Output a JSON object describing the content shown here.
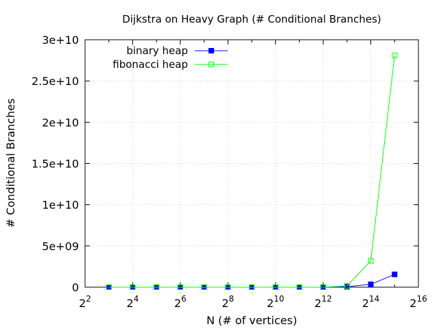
{
  "chart_data": {
    "type": "line",
    "title": "Dijkstra on Heavy Graph (# Conditional Branches)",
    "xlabel": "N (# of vertices)",
    "ylabel": "# Conditional Branches",
    "x_scale": "log2",
    "xlim": [
      4,
      65536
    ],
    "ylim": [
      0,
      30000000000
    ],
    "grid": true,
    "legend_position": "top-left",
    "x_ticks": [
      {
        "value": 4,
        "base": "2",
        "exp": "2"
      },
      {
        "value": 16,
        "base": "2",
        "exp": "4"
      },
      {
        "value": 64,
        "base": "2",
        "exp": "6"
      },
      {
        "value": 256,
        "base": "2",
        "exp": "8"
      },
      {
        "value": 1024,
        "base": "2",
        "exp": "10"
      },
      {
        "value": 4096,
        "base": "2",
        "exp": "12"
      },
      {
        "value": 16384,
        "base": "2",
        "exp": "14"
      },
      {
        "value": 65536,
        "base": "2",
        "exp": "16"
      }
    ],
    "y_ticks": [
      {
        "value": 0,
        "label": "0"
      },
      {
        "value": 5000000000,
        "label": "5e+09"
      },
      {
        "value": 10000000000,
        "label": "1e+10"
      },
      {
        "value": 15000000000,
        "label": "1.5e+10"
      },
      {
        "value": 20000000000,
        "label": "2e+10"
      },
      {
        "value": 25000000000,
        "label": "2.5e+10"
      },
      {
        "value": 30000000000,
        "label": "3e+10"
      }
    ],
    "x": [
      8,
      16,
      32,
      64,
      128,
      256,
      512,
      1024,
      2048,
      4096,
      8192,
      16384,
      32768
    ],
    "series": [
      {
        "name": "binary heap",
        "color": "#0000ff",
        "marker": "filled-square",
        "values": [
          0,
          0,
          0,
          0,
          0,
          0,
          0,
          0,
          0,
          5000000,
          50000000,
          350000000,
          1550000000
        ]
      },
      {
        "name": "fibonacci heap",
        "color": "#00ff00",
        "marker": "open-square",
        "values": [
          0,
          0,
          0,
          0,
          0,
          0,
          0,
          0,
          0,
          12000000,
          150000000,
          3200000000,
          28100000000
        ]
      }
    ]
  }
}
